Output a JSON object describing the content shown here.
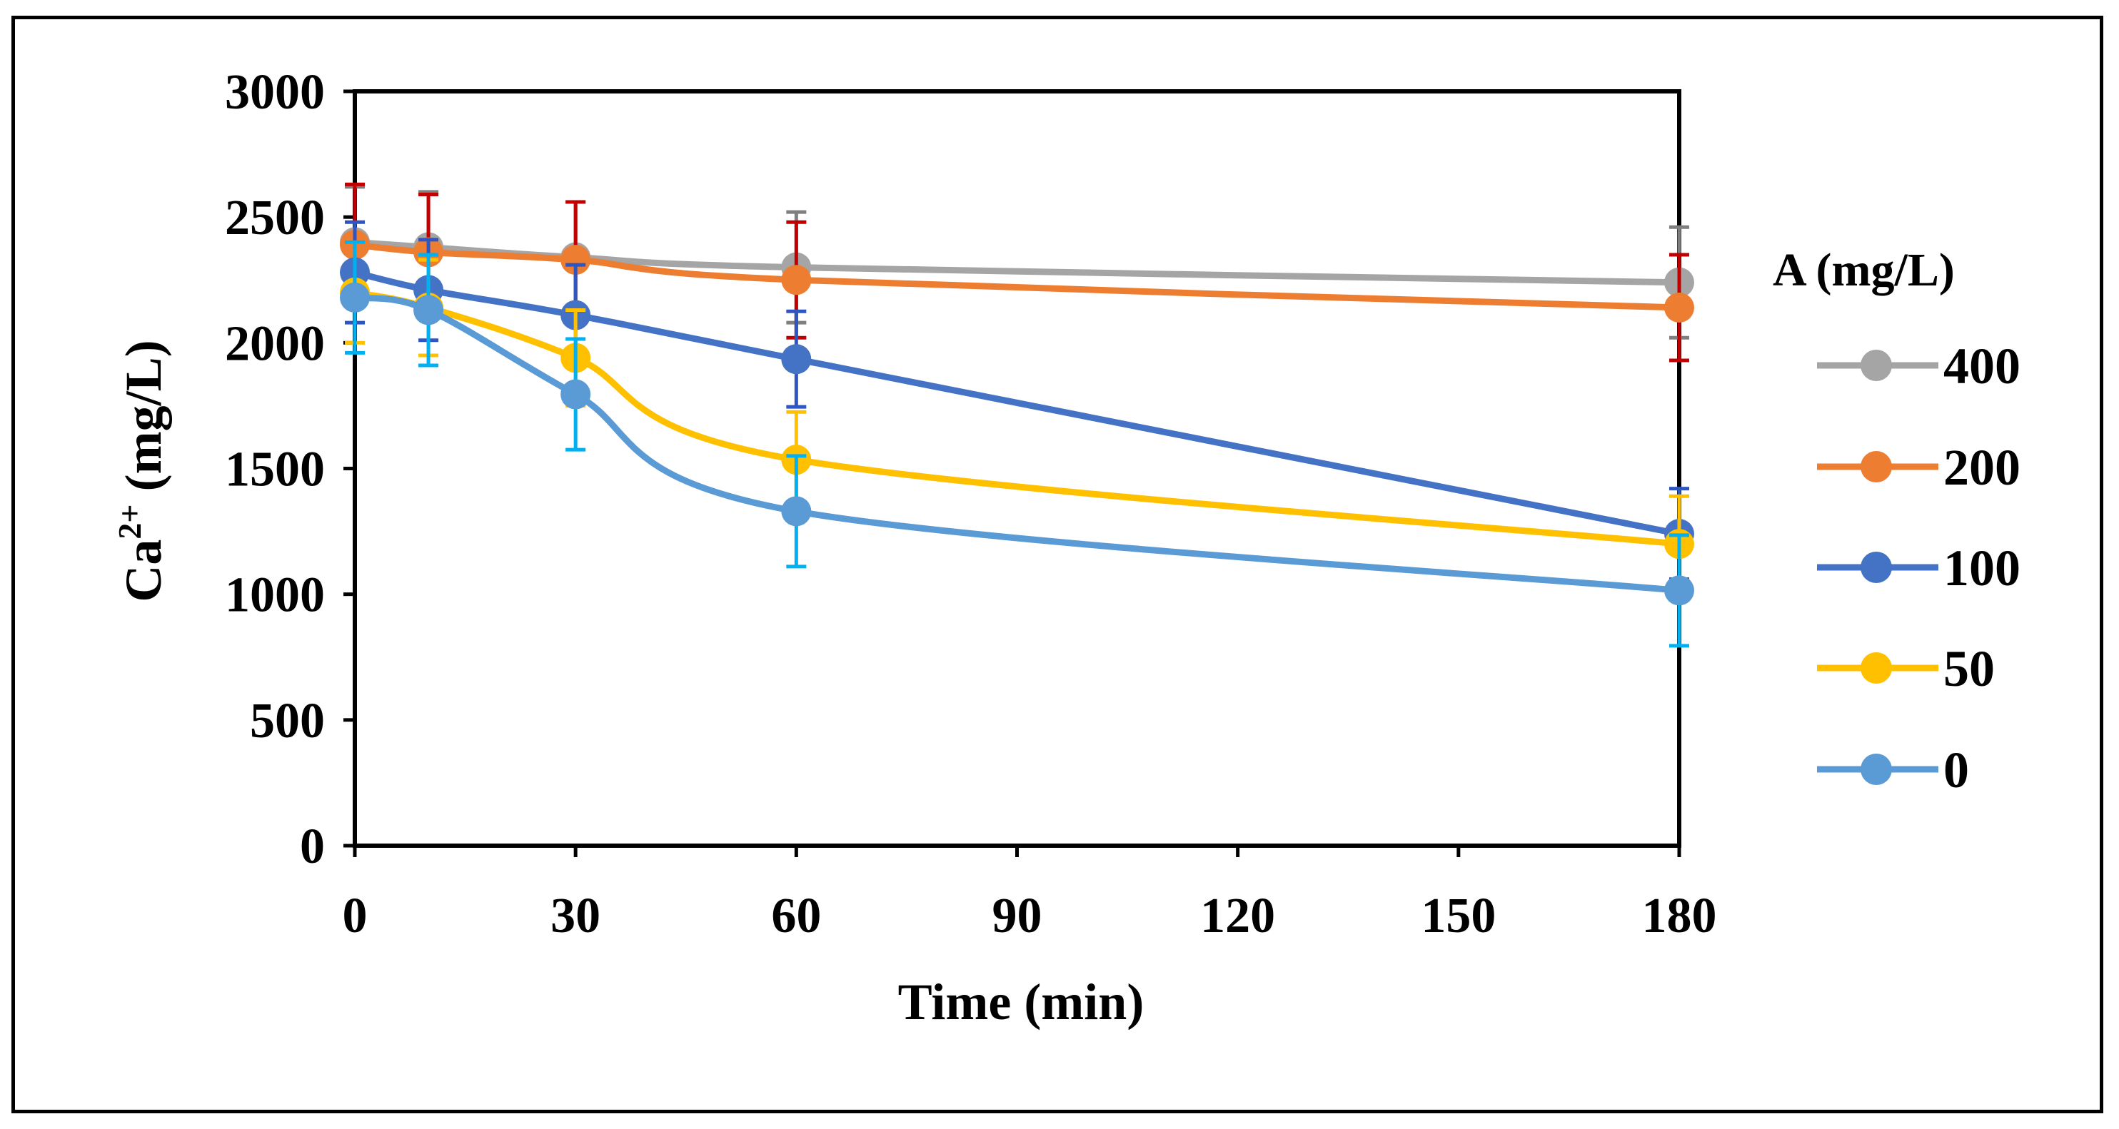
{
  "chart_data": {
    "type": "line",
    "xlabel": "Time (min)",
    "ylabel": "Ca²⁺ (mg/L)",
    "ylabel_base": "Ca",
    "ylabel_sup": "2+",
    "ylabel_rest": " (mg/L)",
    "xlim": [
      0,
      180
    ],
    "ylim": [
      0,
      3000
    ],
    "xticks": [
      0,
      30,
      60,
      90,
      120,
      150,
      180
    ],
    "yticks": [
      0,
      500,
      1000,
      1500,
      2000,
      2500,
      3000
    ],
    "grid": false,
    "legend_title": "A (mg/L)",
    "legend_placement": "right",
    "x": [
      0,
      10,
      30,
      60,
      180
    ],
    "series": [
      {
        "name": "400",
        "color": "#A5A5A5",
        "error_color": "#7F7F7F",
        "values": [
          2400,
          2380,
          2340,
          2300,
          2240
        ],
        "errors": [
          220,
          220,
          220,
          220,
          220
        ]
      },
      {
        "name": "200",
        "color": "#ED7D31",
        "error_color": "#C00000",
        "values": [
          2390,
          2360,
          2330,
          2250,
          2140
        ],
        "errors": [
          240,
          230,
          230,
          230,
          210
        ]
      },
      {
        "name": "100",
        "color": "#4472C4",
        "error_color": "#2F55C0",
        "values": [
          2280,
          2210,
          2110,
          1935,
          1240
        ],
        "errors": [
          200,
          200,
          200,
          190,
          180
        ]
      },
      {
        "name": "50",
        "color": "#FFC000",
        "error_color": "#FFC000",
        "values": [
          2200,
          2140,
          1940,
          1535,
          1200
        ],
        "errors": [
          200,
          190,
          190,
          190,
          190
        ]
      },
      {
        "name": "0",
        "color": "#5B9BD5",
        "error_color": "#00B0F0",
        "values": [
          2180,
          2130,
          1795,
          1330,
          1015
        ],
        "errors": [
          220,
          220,
          220,
          220,
          220
        ]
      }
    ]
  }
}
